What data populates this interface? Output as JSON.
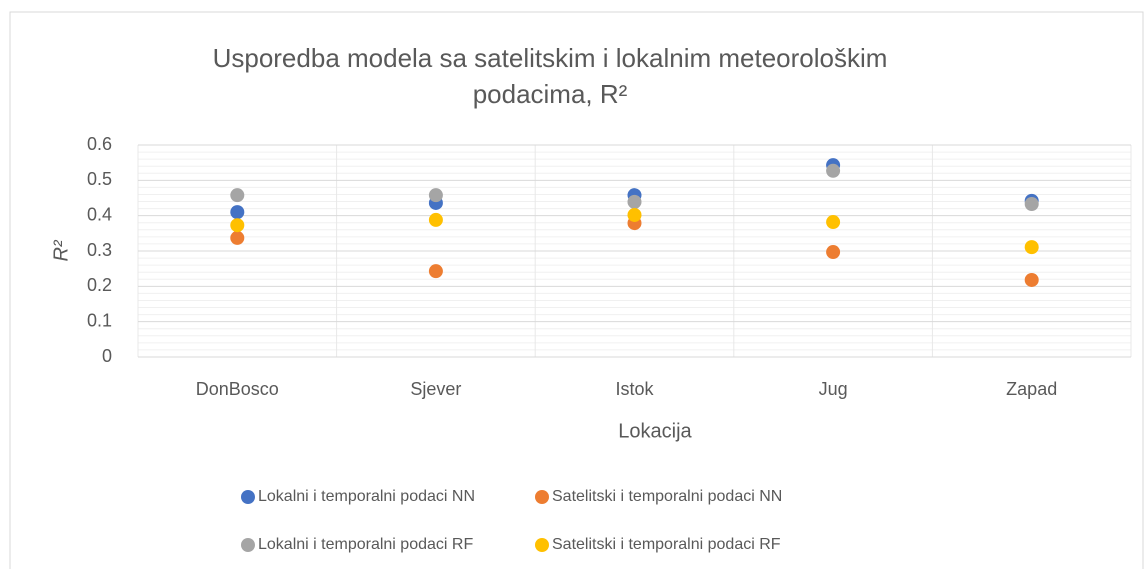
{
  "chart_data": {
    "type": "scatter",
    "title": "Usporedba modela sa satelitskim i lokalnim meteorološkim podacima, R²",
    "x_label": "Lokacija",
    "y_label": "R²",
    "categories": [
      "DonBosco",
      "Sjever",
      "Istok",
      "Jug",
      "Zapad"
    ],
    "series": [
      {
        "name": "Lokalni i temporalni podaci NN",
        "color": "#4472c4",
        "values": [
          0.41,
          0.436,
          0.458,
          0.543,
          0.442
        ]
      },
      {
        "name": "Satelitski i temporalni podaci NN",
        "color": "#ed7d31",
        "values": [
          0.337,
          0.243,
          0.379,
          0.297,
          0.218
        ]
      },
      {
        "name": "Lokalni i temporalni podaci RF",
        "color": "#a5a5a5",
        "values": [
          0.458,
          0.458,
          0.439,
          0.527,
          0.433
        ]
      },
      {
        "name": "Satelitski i temporalni podaci RF",
        "color": "#ffc000",
        "values": [
          0.373,
          0.388,
          0.402,
          0.382,
          0.311
        ]
      }
    ],
    "ylim": [
      0,
      0.6
    ],
    "yticks": [
      0,
      0.1,
      0.2,
      0.3,
      0.4,
      0.5,
      0.6
    ],
    "grid": true,
    "minor_grid": true,
    "legend": "bottom"
  }
}
